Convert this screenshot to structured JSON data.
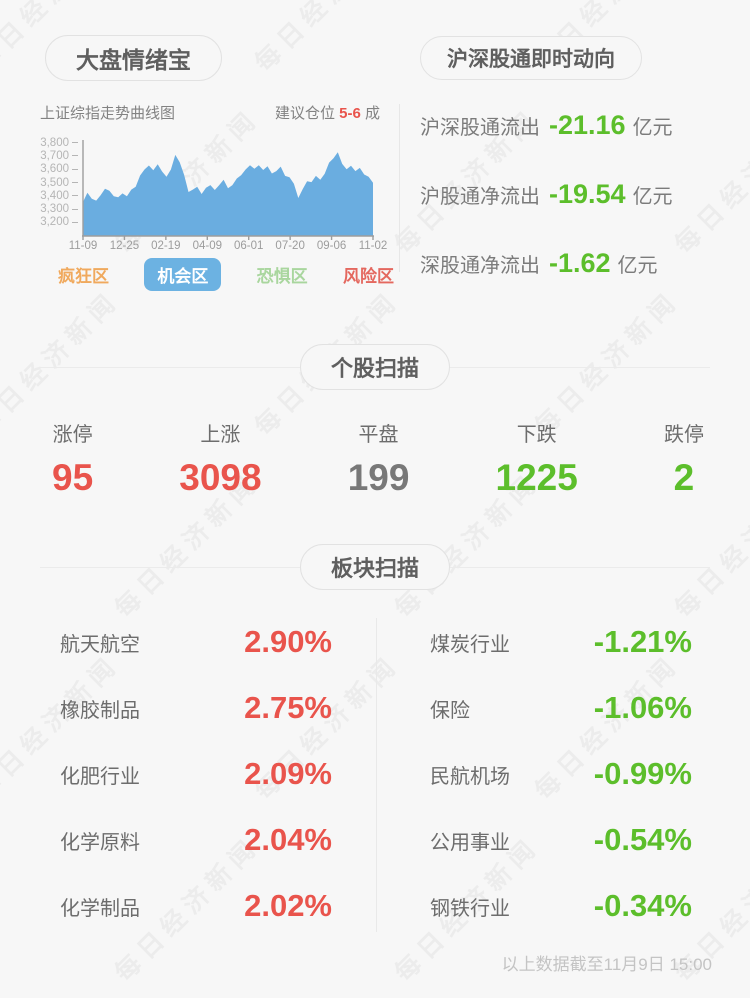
{
  "watermark": {
    "text": "每日经济新闻"
  },
  "colors": {
    "up_red": "#e9544c",
    "down_green": "#5cbe2b",
    "flat_gray": "#787878",
    "chart_fill": "#6aade0",
    "legend_orange": "#f0a95d",
    "legend_blue": "#6cb2e2",
    "legend_light_green": "#a9d69e",
    "legend_coral": "#e4685f",
    "background": "#f7f7f7"
  },
  "sentiment": {
    "title": "大盘情绪宝",
    "chart_title": "上证综指走势曲线图",
    "position_label": "建议仓位",
    "position_value": "5-6",
    "position_unit": "成",
    "legend": [
      {
        "label": "疯狂区",
        "color": "#f0a95d",
        "active": false
      },
      {
        "label": "机会区",
        "color": "#6cb2e2",
        "active": true
      },
      {
        "label": "恐惧区",
        "color": "#a9d69e",
        "active": false
      },
      {
        "label": "风险区",
        "color": "#e4685f",
        "active": false
      }
    ]
  },
  "chart_data": {
    "type": "area",
    "title": "上证综指走势曲线图",
    "x_ticks": [
      "11-09",
      "12-25",
      "02-19",
      "04-09",
      "06-01",
      "07-20",
      "09-06",
      "11-02"
    ],
    "y_ticks": [
      "3,800",
      "3,700",
      "3,600",
      "3,500",
      "3,400",
      "3,300",
      "3,200"
    ],
    "ylim": [
      3200,
      3800
    ],
    "grid": false,
    "fill_color": "#6aade0",
    "values": [
      3355,
      3425,
      3380,
      3365,
      3405,
      3455,
      3440,
      3398,
      3390,
      3420,
      3398,
      3448,
      3470,
      3555,
      3600,
      3630,
      3595,
      3640,
      3585,
      3545,
      3600,
      3710,
      3655,
      3560,
      3430,
      3448,
      3470,
      3415,
      3462,
      3482,
      3445,
      3482,
      3522,
      3458,
      3482,
      3532,
      3558,
      3600,
      3632,
      3606,
      3632,
      3596,
      3625,
      3570,
      3588,
      3622,
      3552,
      3542,
      3492,
      3385,
      3452,
      3512,
      3505,
      3552,
      3522,
      3568,
      3652,
      3685,
      3730,
      3642,
      3602,
      3628,
      3588,
      3612,
      3562,
      3545,
      3500
    ]
  },
  "stock_connect": {
    "title": "沪深股通即时动向",
    "rows": [
      {
        "label": "沪深股通流出",
        "value": "-21.16",
        "unit": "亿元"
      },
      {
        "label": "沪股通净流出",
        "value": "-19.54",
        "unit": "亿元"
      },
      {
        "label": "深股通净流出",
        "value": "-1.62",
        "unit": "亿元"
      }
    ]
  },
  "stock_scan": {
    "title": "个股扫描",
    "items": [
      {
        "label": "涨停",
        "value": "95",
        "color": "red"
      },
      {
        "label": "上涨",
        "value": "3098",
        "color": "red"
      },
      {
        "label": "平盘",
        "value": "199",
        "color": "gray"
      },
      {
        "label": "下跌",
        "value": "1225",
        "color": "green"
      },
      {
        "label": "跌停",
        "value": "2",
        "color": "green"
      }
    ]
  },
  "sector_scan": {
    "title": "板块扫描",
    "left": [
      {
        "name": "航天航空",
        "change": "2.90%"
      },
      {
        "name": "橡胶制品",
        "change": "2.75%"
      },
      {
        "name": "化肥行业",
        "change": "2.09%"
      },
      {
        "name": "化学原料",
        "change": "2.04%"
      },
      {
        "name": "化学制品",
        "change": "2.02%"
      }
    ],
    "right": [
      {
        "name": "煤炭行业",
        "change": "-1.21%"
      },
      {
        "name": "保险",
        "change": "-1.06%"
      },
      {
        "name": "民航机场",
        "change": "-0.99%"
      },
      {
        "name": "公用事业",
        "change": "-0.54%"
      },
      {
        "name": "钢铁行业",
        "change": "-0.34%"
      }
    ]
  },
  "footer": {
    "note": "以上数据截至11月9日 15:00"
  }
}
